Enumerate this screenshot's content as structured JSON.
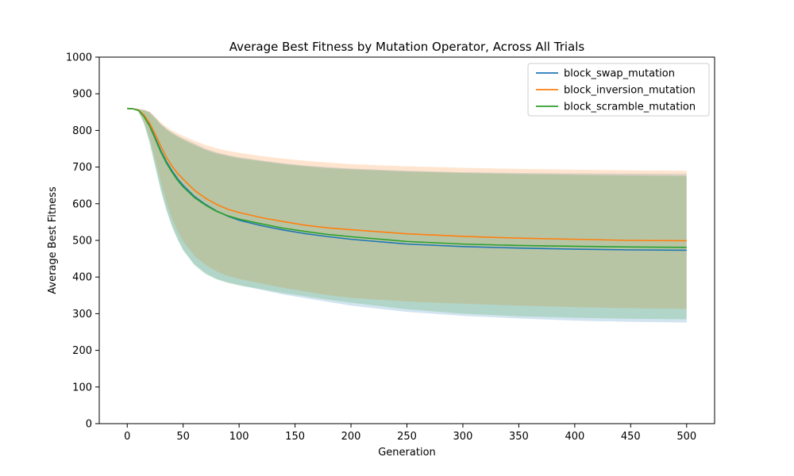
{
  "chart_data": {
    "type": "line",
    "title": "Average Best Fitness by Mutation Operator, Across All Trials",
    "xlabel": "Generation",
    "ylabel": "Average Best Fitness",
    "xlim": [
      -25,
      525
    ],
    "ylim": [
      0,
      1000
    ],
    "xticks": [
      0,
      50,
      100,
      150,
      200,
      250,
      300,
      350,
      400,
      450,
      500
    ],
    "yticks": [
      0,
      100,
      200,
      300,
      400,
      500,
      600,
      700,
      800,
      900,
      1000
    ],
    "grid": false,
    "legend_position": "top-right",
    "x": [
      0,
      5,
      10,
      15,
      20,
      25,
      30,
      35,
      40,
      45,
      50,
      60,
      70,
      80,
      90,
      100,
      120,
      140,
      160,
      180,
      200,
      250,
      300,
      350,
      400,
      450,
      500
    ],
    "series": [
      {
        "name": "block_swap_mutation",
        "color": "#1f77b4",
        "values": [
          860,
          859,
          855,
          840,
          815,
          780,
          745,
          715,
          690,
          668,
          650,
          620,
          598,
          580,
          566,
          555,
          540,
          528,
          518,
          510,
          503,
          490,
          483,
          479,
          476,
          474,
          473
        ],
        "lower": [
          860,
          858,
          852,
          820,
          770,
          705,
          640,
          585,
          540,
          505,
          475,
          435,
          410,
          395,
          385,
          378,
          365,
          352,
          342,
          332,
          322,
          305,
          294,
          287,
          281,
          278,
          276
        ],
        "upper": [
          860,
          859,
          858,
          856,
          850,
          835,
          818,
          805,
          795,
          786,
          778,
          764,
          750,
          740,
          733,
          727,
          718,
          710,
          704,
          700,
          696,
          690,
          686,
          684,
          683,
          682,
          681
        ]
      },
      {
        "name": "block_inversion_mutation",
        "color": "#ff7f0e",
        "values": [
          860,
          859,
          856,
          842,
          820,
          790,
          757,
          727,
          703,
          683,
          667,
          637,
          615,
          598,
          585,
          576,
          562,
          551,
          541,
          534,
          529,
          518,
          511,
          506,
          503,
          500,
          499
        ],
        "lower": [
          860,
          858,
          853,
          825,
          780,
          720,
          660,
          605,
          560,
          525,
          497,
          458,
          433,
          415,
          403,
          395,
          382,
          370,
          360,
          350,
          343,
          333,
          327,
          322,
          318,
          315,
          313
        ],
        "upper": [
          861,
          860,
          859,
          857,
          852,
          838,
          822,
          810,
          800,
          792,
          785,
          772,
          760,
          751,
          744,
          739,
          730,
          723,
          717,
          712,
          708,
          702,
          698,
          695,
          693,
          691,
          690
        ]
      },
      {
        "name": "block_scramble_mutation",
        "color": "#2ca02c",
        "values": [
          860,
          859,
          855,
          838,
          812,
          777,
          741,
          711,
          686,
          664,
          646,
          617,
          596,
          579,
          567,
          558,
          545,
          533,
          524,
          516,
          510,
          497,
          490,
          486,
          484,
          482,
          481
        ],
        "lower": [
          860,
          858,
          851,
          818,
          765,
          700,
          636,
          582,
          538,
          502,
          472,
          432,
          408,
          393,
          384,
          377,
          367,
          356,
          347,
          338,
          330,
          312,
          300,
          293,
          289,
          286,
          285
        ],
        "upper": [
          860,
          859,
          858,
          855,
          849,
          833,
          816,
          803,
          792,
          783,
          775,
          760,
          747,
          737,
          730,
          724,
          716,
          708,
          702,
          697,
          694,
          688,
          684,
          681,
          679,
          677,
          676
        ]
      }
    ]
  }
}
